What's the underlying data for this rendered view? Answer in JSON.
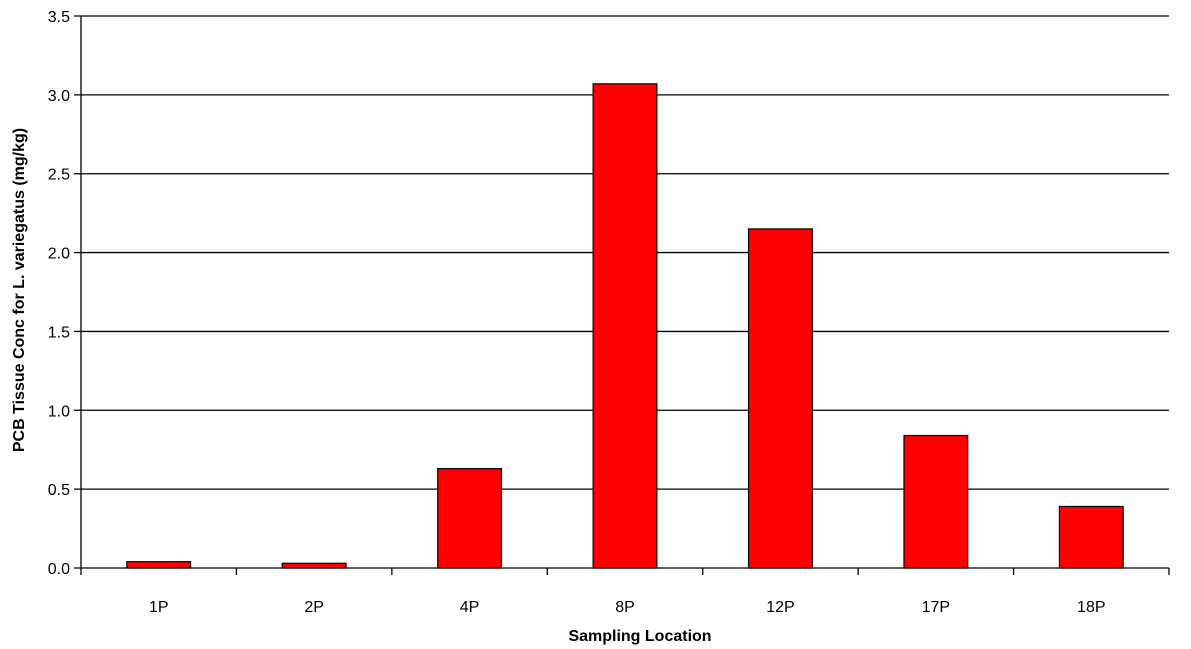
{
  "chart_data": {
    "type": "bar",
    "title": "",
    "xlabel": "Sampling Location",
    "ylabel": "PCB Tissue Conc for L. variegatus (mg/kg)",
    "categories": [
      "1P",
      "2P",
      "4P",
      "8P",
      "12P",
      "17P",
      "18P"
    ],
    "values": [
      0.04,
      0.03,
      0.63,
      3.07,
      2.15,
      0.84,
      0.39
    ],
    "ylim": [
      0,
      3.5
    ],
    "yticks": [
      "0.0",
      "0.5",
      "1.0",
      "1.5",
      "2.0",
      "2.5",
      "3.0",
      "3.5"
    ],
    "grid": true,
    "legend": "none",
    "bar_color": "#ff0000",
    "bar_edge_color": "#000000"
  }
}
